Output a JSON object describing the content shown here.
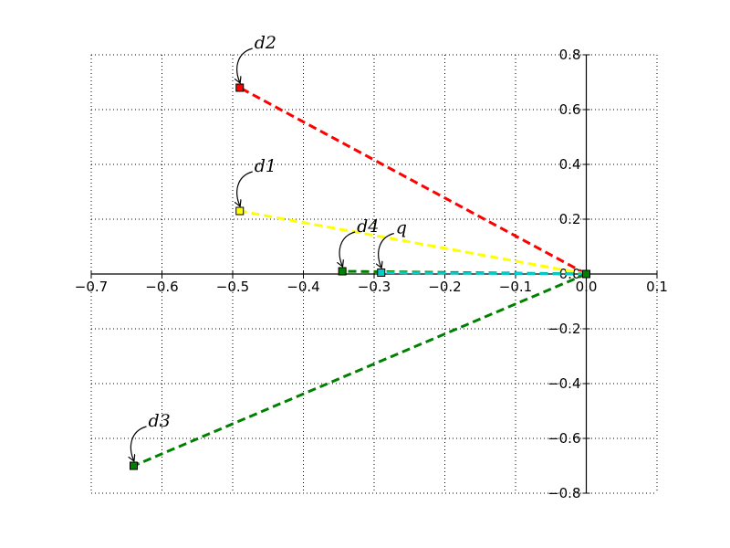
{
  "chart_data": {
    "type": "line",
    "title": "",
    "xlabel": "",
    "ylabel": "",
    "xlim": [
      -0.7,
      0.1
    ],
    "ylim": [
      -0.8,
      0.8
    ],
    "xticks": [
      -0.7,
      -0.6,
      -0.5,
      -0.4,
      -0.3,
      -0.2,
      -0.1,
      0.0,
      0.1
    ],
    "yticks": [
      -0.8,
      -0.6,
      -0.4,
      -0.2,
      0.0,
      0.2,
      0.4,
      0.6,
      0.8
    ],
    "xtick_labels": [
      "−0.7",
      "−0.6",
      "−0.5",
      "−0.4",
      "−0.3",
      "−0.2",
      "−0.1",
      "0.0",
      "0.1"
    ],
    "ytick_labels": [
      "−0.8",
      "−0.6",
      "−0.4",
      "−0.2",
      "0.0",
      "0.2",
      "0.4",
      "0.6",
      "0.8"
    ],
    "grid": true,
    "origin": [
      0.0,
      0.0
    ],
    "series": [
      {
        "name": "d2",
        "x": -0.49,
        "y": 0.68,
        "color": "#ff0000"
      },
      {
        "name": "d1",
        "x": -0.49,
        "y": 0.23,
        "color": "#ffff00"
      },
      {
        "name": "d4",
        "x": -0.345,
        "y": 0.01,
        "color": "#008000"
      },
      {
        "name": "q",
        "x": -0.29,
        "y": 0.005,
        "color": "#00cccc"
      },
      {
        "name": "d3",
        "x": -0.64,
        "y": -0.7,
        "color": "#008000"
      }
    ]
  }
}
